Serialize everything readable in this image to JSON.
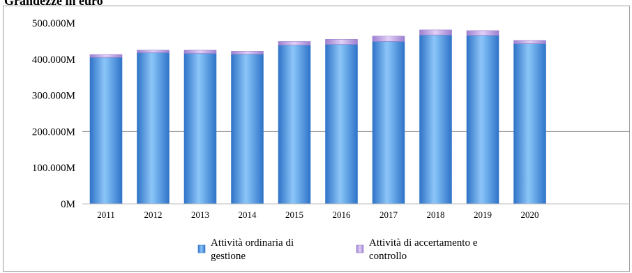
{
  "page_title": "Grandezze in euro",
  "chart_data": {
    "type": "bar",
    "stacked": true,
    "title": "",
    "xlabel": "",
    "ylabel": "",
    "categories": [
      "2011",
      "2012",
      "2013",
      "2014",
      "2015",
      "2016",
      "2017",
      "2018",
      "2019",
      "2020"
    ],
    "series": [
      {
        "name": "Attività ordinaria di gestione",
        "values": [
          405,
          418,
          416,
          414,
          439,
          441,
          449,
          467,
          466,
          443
        ],
        "color": "#4d9ce8"
      },
      {
        "name": "Attività di accertamento e controllo",
        "values": [
          8,
          7,
          9,
          8,
          10,
          14,
          15,
          14,
          13,
          9
        ],
        "color": "#c2a4e8"
      }
    ],
    "ylim": [
      0,
      500
    ],
    "yticks": [
      {
        "value": 0,
        "label": "0M"
      },
      {
        "value": 100,
        "label": "100.000M"
      },
      {
        "value": 200,
        "label": "200.000M"
      },
      {
        "value": 300,
        "label": "300.000M"
      },
      {
        "value": 400,
        "label": "400.000M"
      },
      {
        "value": 500,
        "label": "500.000M"
      }
    ],
    "gridlines": [
      200
    ],
    "legend_position": "bottom",
    "legend": [
      {
        "lines": [
          "Attività ordinaria di",
          "gestione"
        ]
      },
      {
        "lines": [
          "Attività di accertamento e",
          "controllo"
        ]
      }
    ]
  }
}
